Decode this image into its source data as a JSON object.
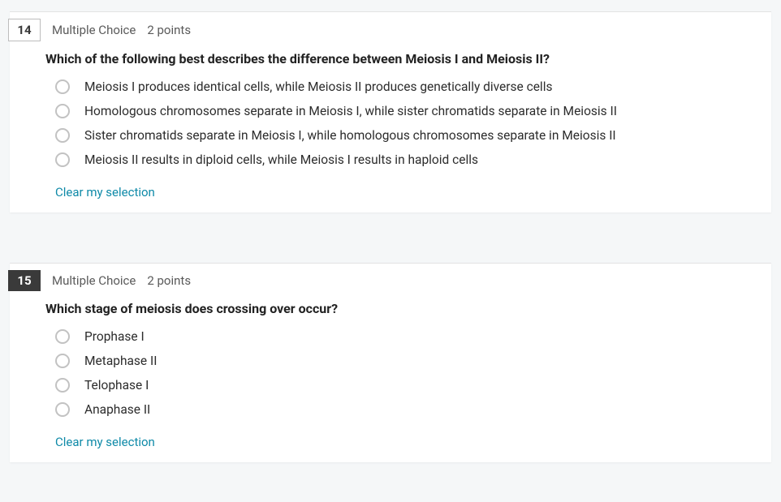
{
  "questions": [
    {
      "number": "14",
      "number_style": "outline",
      "type_label": "Multiple Choice",
      "points_label": "2 points",
      "stem": "Which of the following best describes the difference between Meiosis I and Meiosis II?",
      "options": [
        "Meiosis I produces identical cells, while Meiosis II produces genetically diverse cells",
        "Homologous chromosomes separate in Meiosis I, while sister chromatids separate in Meiosis II",
        "Sister chromatids separate in Meiosis I, while homologous chromosomes separate in Meiosis II",
        "Meiosis II results in diploid cells, while Meiosis I results in haploid cells"
      ],
      "clear_label": "Clear my selection"
    },
    {
      "number": "15",
      "number_style": "solid",
      "type_label": "Multiple Choice",
      "points_label": "2 points",
      "stem": "Which stage of meiosis does crossing over occur?",
      "options": [
        "Prophase I",
        "Metaphase II",
        "Telophase I",
        "Anaphase II"
      ],
      "clear_label": "Clear my selection"
    }
  ],
  "colors": {
    "page_bg": "#f5f7f8",
    "card_bg": "#ffffff",
    "text": "#2c2c2c",
    "muted": "#5a5a5a",
    "number_bg": "#3a3a3a",
    "radio_border": "#c2c2c2",
    "link": "#0f8aa8"
  }
}
